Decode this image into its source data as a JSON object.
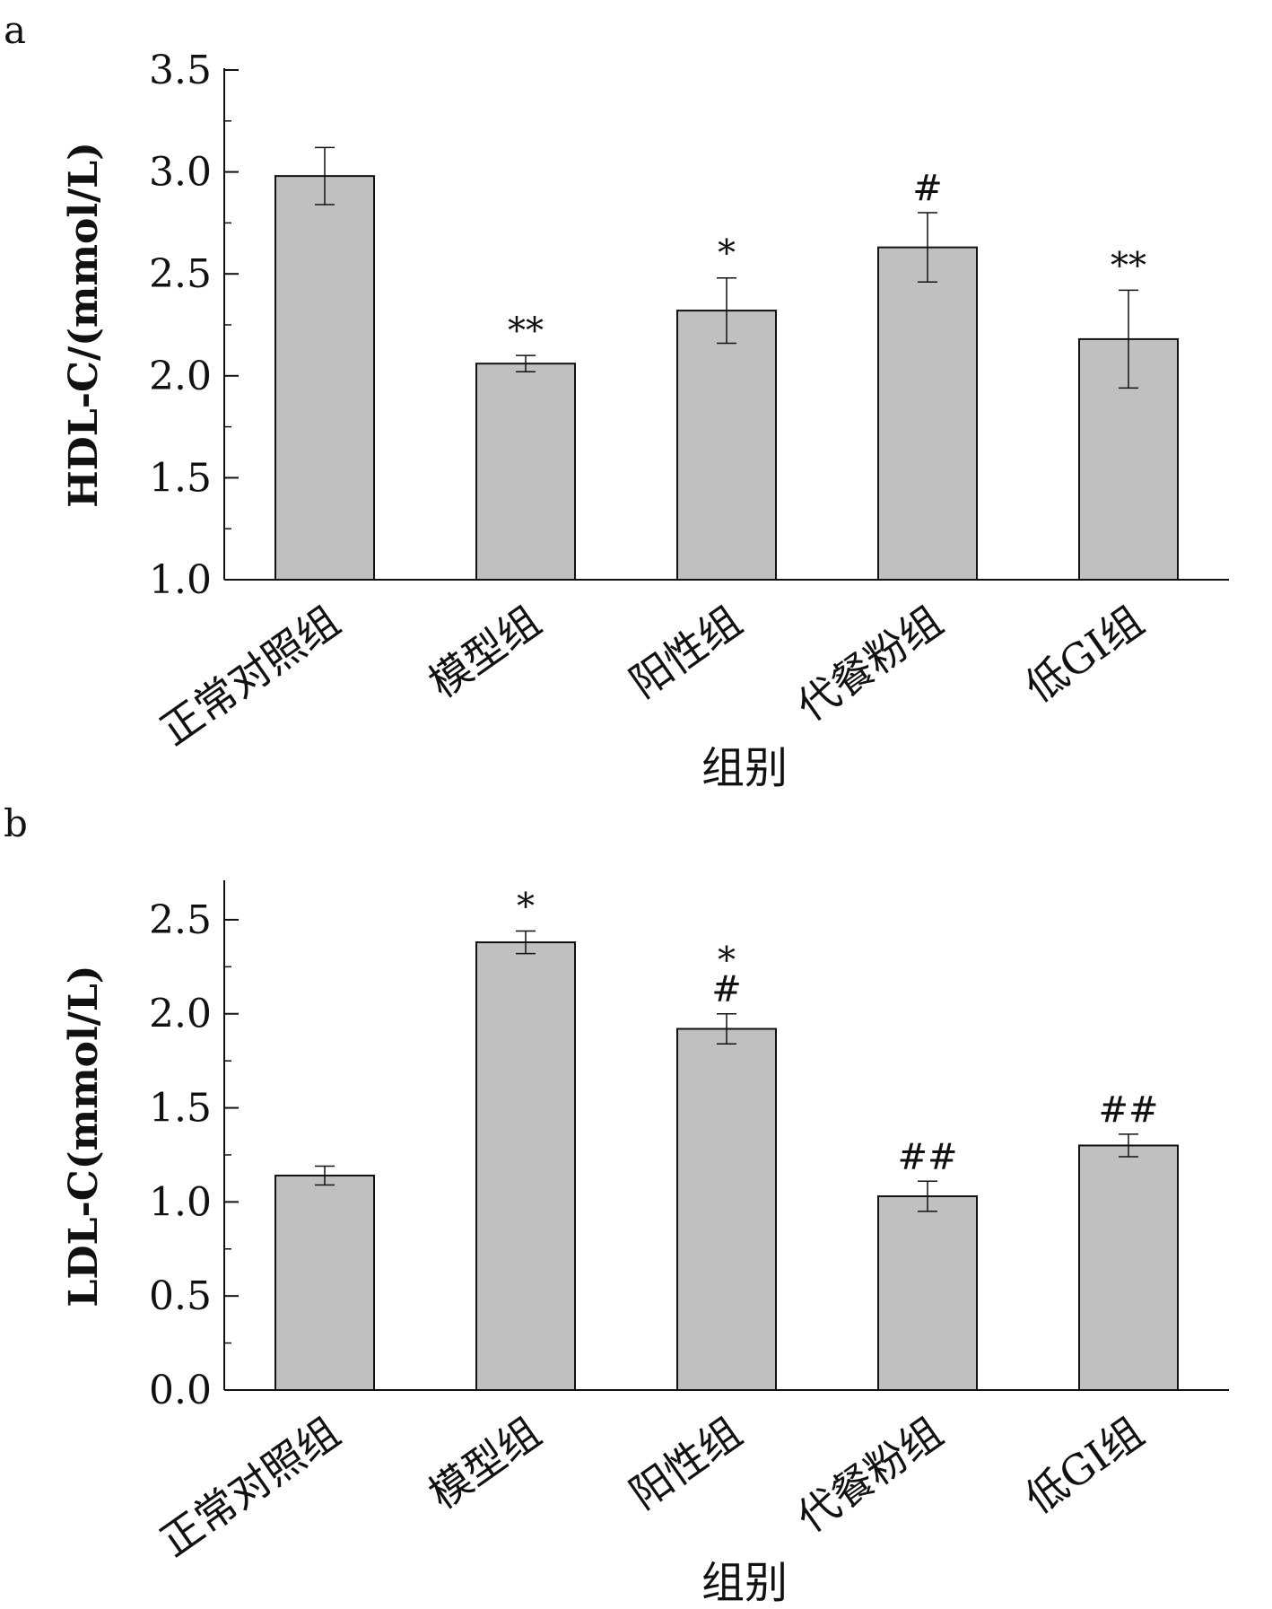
{
  "chart_data": [
    {
      "panel": "a",
      "type": "bar",
      "categories": [
        "正常对照组",
        "模型组",
        "阳性组",
        "代餐粉组",
        "低GI组"
      ],
      "values": [
        2.98,
        2.06,
        2.32,
        2.63,
        2.18
      ],
      "errors": [
        0.14,
        0.04,
        0.16,
        0.17,
        0.24
      ],
      "annotations": [
        "",
        "**",
        "*",
        "#",
        "**"
      ],
      "ylabel": "HDL-C/(mmol/L)",
      "xlabel": "组别",
      "ylim": [
        1.0,
        3.5
      ],
      "yticks": [
        "1.0",
        "1.5",
        "2.0",
        "2.5",
        "3.0",
        "3.5"
      ],
      "ytick_values": [
        1.0,
        1.5,
        2.0,
        2.5,
        3.0,
        3.5
      ],
      "minor_step": 0.25,
      "bar_color": "#c0c0c0",
      "grid": false
    },
    {
      "panel": "b",
      "type": "bar",
      "categories": [
        "正常对照组",
        "模型组",
        "阳性组",
        "代餐粉组",
        "低GI组"
      ],
      "values": [
        1.14,
        2.38,
        1.92,
        1.03,
        1.3
      ],
      "errors": [
        0.05,
        0.06,
        0.08,
        0.08,
        0.06
      ],
      "annotations": [
        "",
        "*",
        "*\n#",
        "##",
        "##"
      ],
      "ylabel": "LDL-C(mmol/L)",
      "xlabel": "组别",
      "ylim": [
        0.0,
        2.7
      ],
      "yticks": [
        "0.0",
        "0.5",
        "1.0",
        "1.5",
        "2.0",
        "2.5"
      ],
      "ytick_values": [
        0.0,
        0.5,
        1.0,
        1.5,
        2.0,
        2.5
      ],
      "minor_step": 0.25,
      "bar_color": "#c0c0c0",
      "grid": false
    }
  ]
}
